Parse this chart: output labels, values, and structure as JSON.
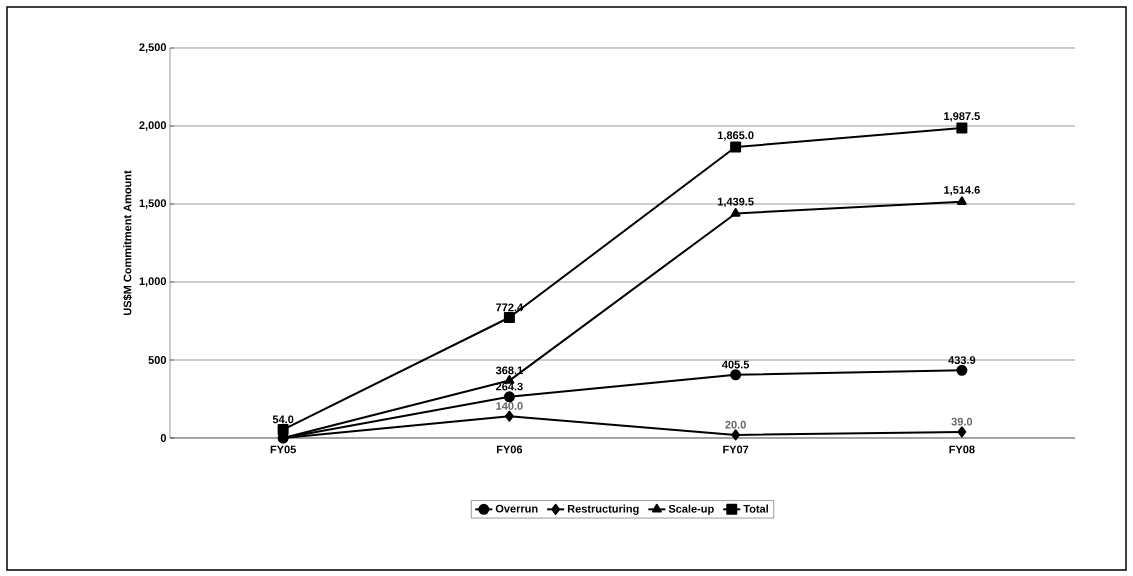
{
  "chart_data": {
    "type": "line",
    "ylabel": "US$M Commitment Amount",
    "categories": [
      "FY05",
      "FY06",
      "FY07",
      "FY08"
    ],
    "series": [
      {
        "name": "Overrun",
        "color": "#000000",
        "marker": "circle",
        "values": [
          0,
          264.3,
          405.5,
          433.9
        ],
        "value_labels": [
          null,
          "264.3",
          "405.5",
          "433.9"
        ]
      },
      {
        "name": "Restructuring",
        "color": "#000000",
        "marker": "diamond",
        "values": [
          0,
          140.0,
          20.0,
          39.0
        ],
        "value_labels": [
          null,
          "140.0",
          "20.0",
          "39.0"
        ]
      },
      {
        "name": "Scale-up",
        "color": "#000000",
        "marker": "triangle",
        "values": [
          0,
          368.1,
          1439.5,
          1514.6
        ],
        "value_labels": [
          null,
          "368.1",
          "1,439.5",
          "1,514.6"
        ]
      },
      {
        "name": "Total",
        "color": "#000000",
        "marker": "square",
        "values": [
          54.0,
          772.4,
          1865.0,
          1987.5
        ],
        "value_labels": [
          "54.0",
          "772.4",
          "1,865.0",
          "1,987.5"
        ]
      }
    ],
    "ylim": [
      0,
      2500
    ],
    "yticks": [
      0,
      500,
      {
        "value": 1000,
        "label": "1,000"
      },
      {
        "value": 1500,
        "label": "1,500"
      },
      {
        "value": 2000,
        "label": "2,000"
      },
      {
        "value": 2500,
        "label": "2,500"
      }
    ],
    "grid": "y",
    "legend": "bottom",
    "line_style": "solid"
  }
}
